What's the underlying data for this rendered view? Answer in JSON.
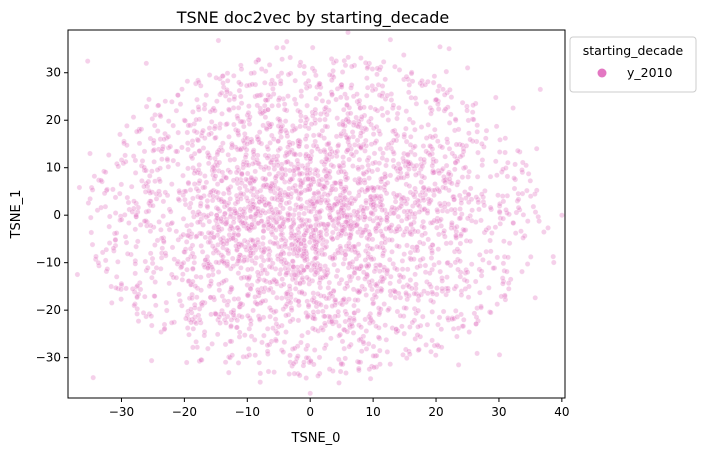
{
  "chart_data": {
    "type": "scatter",
    "title": "TSNE doc2vec by starting_decade",
    "xlabel": "TSNE_0",
    "ylabel": "TSNE_1",
    "xlim": [
      -38.5,
      40.5
    ],
    "ylim": [
      -38.5,
      39
    ],
    "xticks": [
      -30,
      -20,
      -10,
      0,
      10,
      20,
      30,
      40
    ],
    "yticks": [
      -30,
      -20,
      -10,
      0,
      10,
      20,
      30
    ],
    "xtick_labels": [
      "−30",
      "−20",
      "−10",
      "0",
      "10",
      "20",
      "30",
      "40"
    ],
    "ytick_labels": [
      "−30",
      "−20",
      "−10",
      "0",
      "10",
      "20",
      "30"
    ],
    "grid": false,
    "legend": {
      "title": "starting_decade",
      "placement": "outside-top-right",
      "entries": [
        {
          "label": "y_2010",
          "color": "#e377c2"
        }
      ]
    },
    "series": [
      {
        "name": "y_2010",
        "color": "#e377c2",
        "alpha": 0.35,
        "point_count": 3200,
        "distribution": "dense elliptical cloud centered near (0, 0), x spread approx -38 to 40, y spread approx -38 to 38",
        "notable_points": [
          {
            "x": -34.5,
            "y": -34.2
          },
          {
            "x": 6,
            "y": 38.5
          },
          {
            "x": 0,
            "y": -37.5
          },
          {
            "x": -37,
            "y": -12.5
          },
          {
            "x": 40,
            "y": 0
          },
          {
            "x": 36,
            "y": 14
          },
          {
            "x": -35,
            "y": 13
          },
          {
            "x": 25,
            "y": -12
          },
          {
            "x": -25,
            "y": 2
          },
          {
            "x": 5,
            "y": 27
          }
        ]
      }
    ]
  }
}
